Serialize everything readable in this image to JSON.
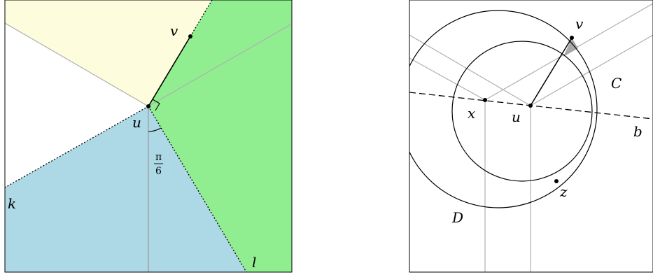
{
  "left_panel": {
    "labels": {
      "v": "v",
      "u": "u",
      "k": "k",
      "l": "l",
      "angle_numerator": "π",
      "angle_denominator": "6"
    },
    "colors": {
      "top_region": "#fdfcdc",
      "right_region": "#90ee90",
      "bottom_region": "#add8e6",
      "helper_lines": "#b0b0b0",
      "outline": "#000000"
    }
  },
  "right_panel": {
    "labels": {
      "v": "v",
      "u": "u",
      "x": "x",
      "z": "z",
      "b": "b",
      "C": "C",
      "D": "D"
    },
    "colors": {
      "wedge": "#a9a9a9",
      "helper_lines": "#b0b0b0",
      "outline": "#000000"
    }
  }
}
